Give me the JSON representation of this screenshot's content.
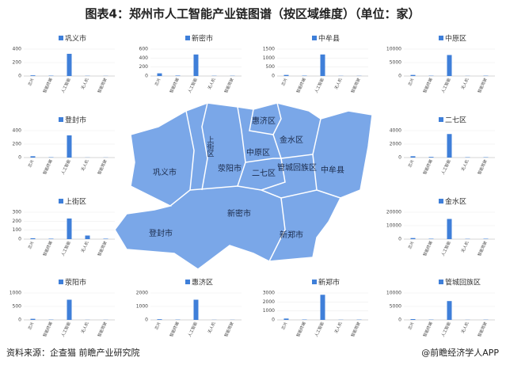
{
  "title": "图表4：郑州市人工智能产业链图谱（按区域维度）（单位：家）",
  "source": "资料来源：企查猫 前瞻产业研究院",
  "brand": "@前瞻经济学人APP",
  "map": {
    "labels": [
      "巩义市",
      "荥阳市",
      "上街区",
      "惠济区",
      "金水区",
      "中原区",
      "二七区",
      "管城回族区",
      "中牟县",
      "登封市",
      "新密市",
      "新郑市"
    ]
  },
  "chart_data": [
    {
      "type": "bar",
      "title": "巩义市",
      "categories": [
        "芯片",
        "智能终端",
        "人工智能",
        "无人机",
        "智能驾驶"
      ],
      "values": [
        10,
        5,
        330,
        3,
        2
      ],
      "ylim": [
        0,
        400
      ],
      "yticks": [
        0,
        200,
        400
      ],
      "color": "#3f7fd9"
    },
    {
      "type": "bar",
      "title": "新密市",
      "categories": [
        "芯片",
        "智能终端",
        "人工智能",
        "无人机",
        "智能驾驶"
      ],
      "values": [
        60,
        10,
        480,
        5,
        5
      ],
      "ylim": [
        0,
        600
      ],
      "yticks": [
        0,
        200,
        400,
        600
      ],
      "color": "#3f7fd9"
    },
    {
      "type": "bar",
      "title": "中牟县",
      "categories": [
        "芯片",
        "智能终端",
        "人工智能",
        "无人机",
        "智能驾驶"
      ],
      "values": [
        60,
        20,
        1200,
        10,
        10
      ],
      "ylim": [
        0,
        1500
      ],
      "yticks": [
        0,
        500,
        1000,
        1500
      ],
      "color": "#3f7fd9"
    },
    {
      "type": "bar",
      "title": "中原区",
      "categories": [
        "芯片",
        "智能终端",
        "人工智能",
        "无人机",
        "智能驾驶"
      ],
      "values": [
        400,
        100,
        7800,
        50,
        100
      ],
      "ylim": [
        0,
        10000
      ],
      "yticks": [
        0,
        5000,
        10000
      ],
      "color": "#3f7fd9"
    },
    {
      "type": "bar",
      "title": "登封市",
      "categories": [
        "芯片",
        "智能终端",
        "人工智能",
        "无人机",
        "智能驾驶"
      ],
      "values": [
        20,
        5,
        330,
        2,
        2
      ],
      "ylim": [
        0,
        400
      ],
      "yticks": [
        0,
        200,
        400
      ],
      "color": "#3f7fd9"
    },
    {
      "type": "bar",
      "title": "二七区",
      "categories": [
        "芯片",
        "智能终端",
        "人工智能",
        "无人机",
        "智能驾驶"
      ],
      "values": [
        200,
        100,
        3500,
        50,
        50
      ],
      "ylim": [
        0,
        4000
      ],
      "yticks": [
        0,
        2000,
        4000
      ],
      "color": "#3f7fd9"
    },
    {
      "type": "bar",
      "title": "上街区",
      "categories": [
        "芯片",
        "智能终端",
        "人工智能",
        "无人机",
        "智能驾驶"
      ],
      "values": [
        10,
        5,
        230,
        40,
        5
      ],
      "ylim": [
        0,
        300
      ],
      "yticks": [
        0,
        100,
        200,
        300
      ],
      "color": "#3f7fd9"
    },
    {
      "type": "bar",
      "title": "金水区",
      "categories": [
        "芯片",
        "智能终端",
        "人工智能",
        "无人机",
        "智能驾驶"
      ],
      "values": [
        800,
        300,
        15000,
        200,
        300
      ],
      "ylim": [
        0,
        20000
      ],
      "yticks": [
        0,
        10000,
        20000
      ],
      "color": "#3f7fd9"
    },
    {
      "type": "bar",
      "title": "荥阳市",
      "categories": [
        "芯片",
        "智能终端",
        "人工智能",
        "无人机",
        "智能驾驶"
      ],
      "values": [
        40,
        10,
        750,
        5,
        5
      ],
      "ylim": [
        0,
        1000
      ],
      "yticks": [
        0,
        500,
        1000
      ],
      "color": "#3f7fd9"
    },
    {
      "type": "bar",
      "title": "惠济区",
      "categories": [
        "芯片",
        "智能终端",
        "人工智能",
        "无人机",
        "智能驾驶"
      ],
      "values": [
        50,
        20,
        1500,
        10,
        10
      ],
      "ylim": [
        0,
        2000
      ],
      "yticks": [
        0,
        1000,
        2000
      ],
      "color": "#3f7fd9"
    },
    {
      "type": "bar",
      "title": "新郑市",
      "categories": [
        "芯片",
        "智能终端",
        "人工智能",
        "无人机",
        "智能驾驶"
      ],
      "values": [
        150,
        40,
        2800,
        20,
        30
      ],
      "ylim": [
        0,
        3000
      ],
      "yticks": [
        0,
        1000,
        2000,
        3000
      ],
      "color": "#3f7fd9"
    },
    {
      "type": "bar",
      "title": "管城回族区",
      "categories": [
        "芯片",
        "智能终端",
        "人工智能",
        "无人机",
        "智能驾驶"
      ],
      "values": [
        300,
        100,
        7000,
        50,
        80
      ],
      "ylim": [
        0,
        10000
      ],
      "yticks": [
        0,
        5000,
        10000
      ],
      "color": "#3f7fd9"
    }
  ]
}
